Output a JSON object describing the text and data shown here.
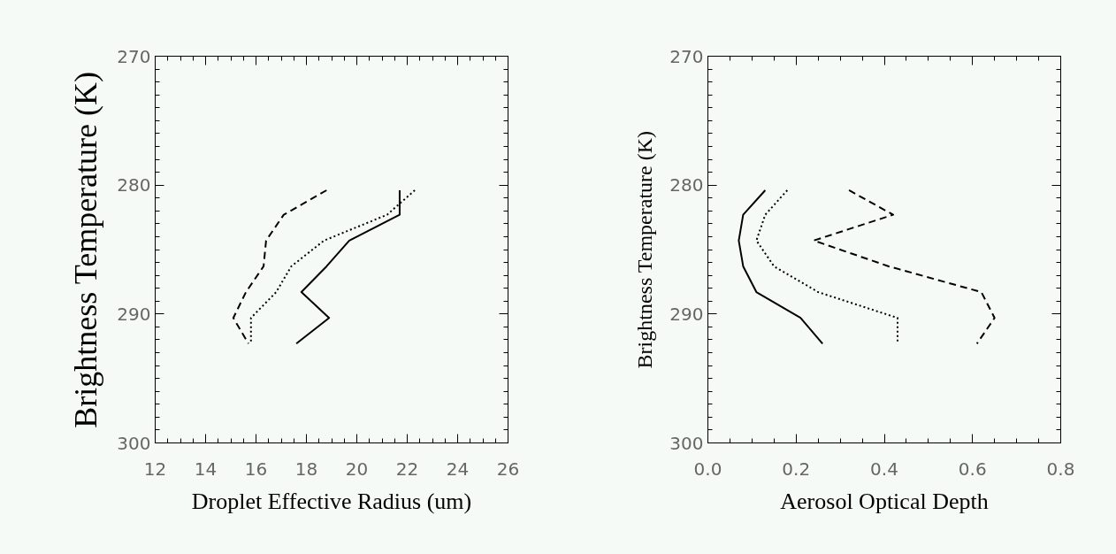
{
  "chart_data": [
    {
      "type": "line",
      "xlabel": "Droplet Effective Radius (um)",
      "ylabel": "Brightness Temperature (K)",
      "xlim": [
        12,
        26
      ],
      "xticks": [
        12,
        14,
        16,
        18,
        20,
        22,
        24,
        26
      ],
      "ylim": [
        300,
        270
      ],
      "yticks": [
        270,
        280,
        290,
        300
      ],
      "grid": false,
      "series": [
        {
          "color": "#000000",
          "line_style": "solid",
          "x": [
            21.7,
            21.7,
            19.7,
            18.8,
            17.8,
            18.9,
            17.6
          ],
          "values": [
            280.4,
            282.3,
            284.3,
            286.3,
            288.3,
            290.3,
            292.3
          ]
        },
        {
          "color": "#000000",
          "line_style": "dotted",
          "x": [
            22.3,
            21.2,
            18.7,
            17.4,
            16.8,
            15.8,
            15.8
          ],
          "values": [
            280.4,
            282.3,
            284.3,
            286.3,
            288.3,
            290.3,
            292.3
          ]
        },
        {
          "color": "#000000",
          "line_style": "dashed",
          "x": [
            18.8,
            17.1,
            16.4,
            16.3,
            15.6,
            15.1,
            15.7
          ],
          "values": [
            280.4,
            282.3,
            284.3,
            286.3,
            288.3,
            290.3,
            292.3
          ]
        }
      ]
    },
    {
      "type": "line",
      "xlabel": "Aerosol Optical Depth",
      "ylabel": "Brightness Temperature (K)",
      "xlim": [
        0,
        0.8
      ],
      "xticks": [
        {
          "value": 0,
          "label": "0.0"
        },
        {
          "value": 0.2,
          "label": "0.2"
        },
        {
          "value": 0.4,
          "label": "0.4"
        },
        {
          "value": 0.6,
          "label": "0.6"
        },
        {
          "value": 0.8,
          "label": "0.8"
        }
      ],
      "ylim": [
        300,
        270
      ],
      "yticks": [
        270,
        280,
        290,
        300
      ],
      "grid": false,
      "series": [
        {
          "color": "#000000",
          "line_style": "solid",
          "x": [
            0.13,
            0.08,
            0.07,
            0.08,
            0.11,
            0.21,
            0.26
          ],
          "values": [
            280.4,
            282.3,
            284.3,
            286.3,
            288.3,
            290.3,
            292.3
          ]
        },
        {
          "color": "#000000",
          "line_style": "dotted",
          "x": [
            0.18,
            0.13,
            0.11,
            0.15,
            0.25,
            0.43,
            0.43
          ],
          "values": [
            280.4,
            282.3,
            284.3,
            286.3,
            288.3,
            290.3,
            292.3
          ]
        },
        {
          "color": "#000000",
          "line_style": "dashed",
          "x": [
            0.32,
            0.42,
            0.24,
            0.41,
            0.62,
            0.65,
            0.61
          ],
          "values": [
            280.4,
            282.3,
            284.3,
            286.3,
            288.3,
            290.3,
            292.3
          ]
        }
      ]
    }
  ]
}
